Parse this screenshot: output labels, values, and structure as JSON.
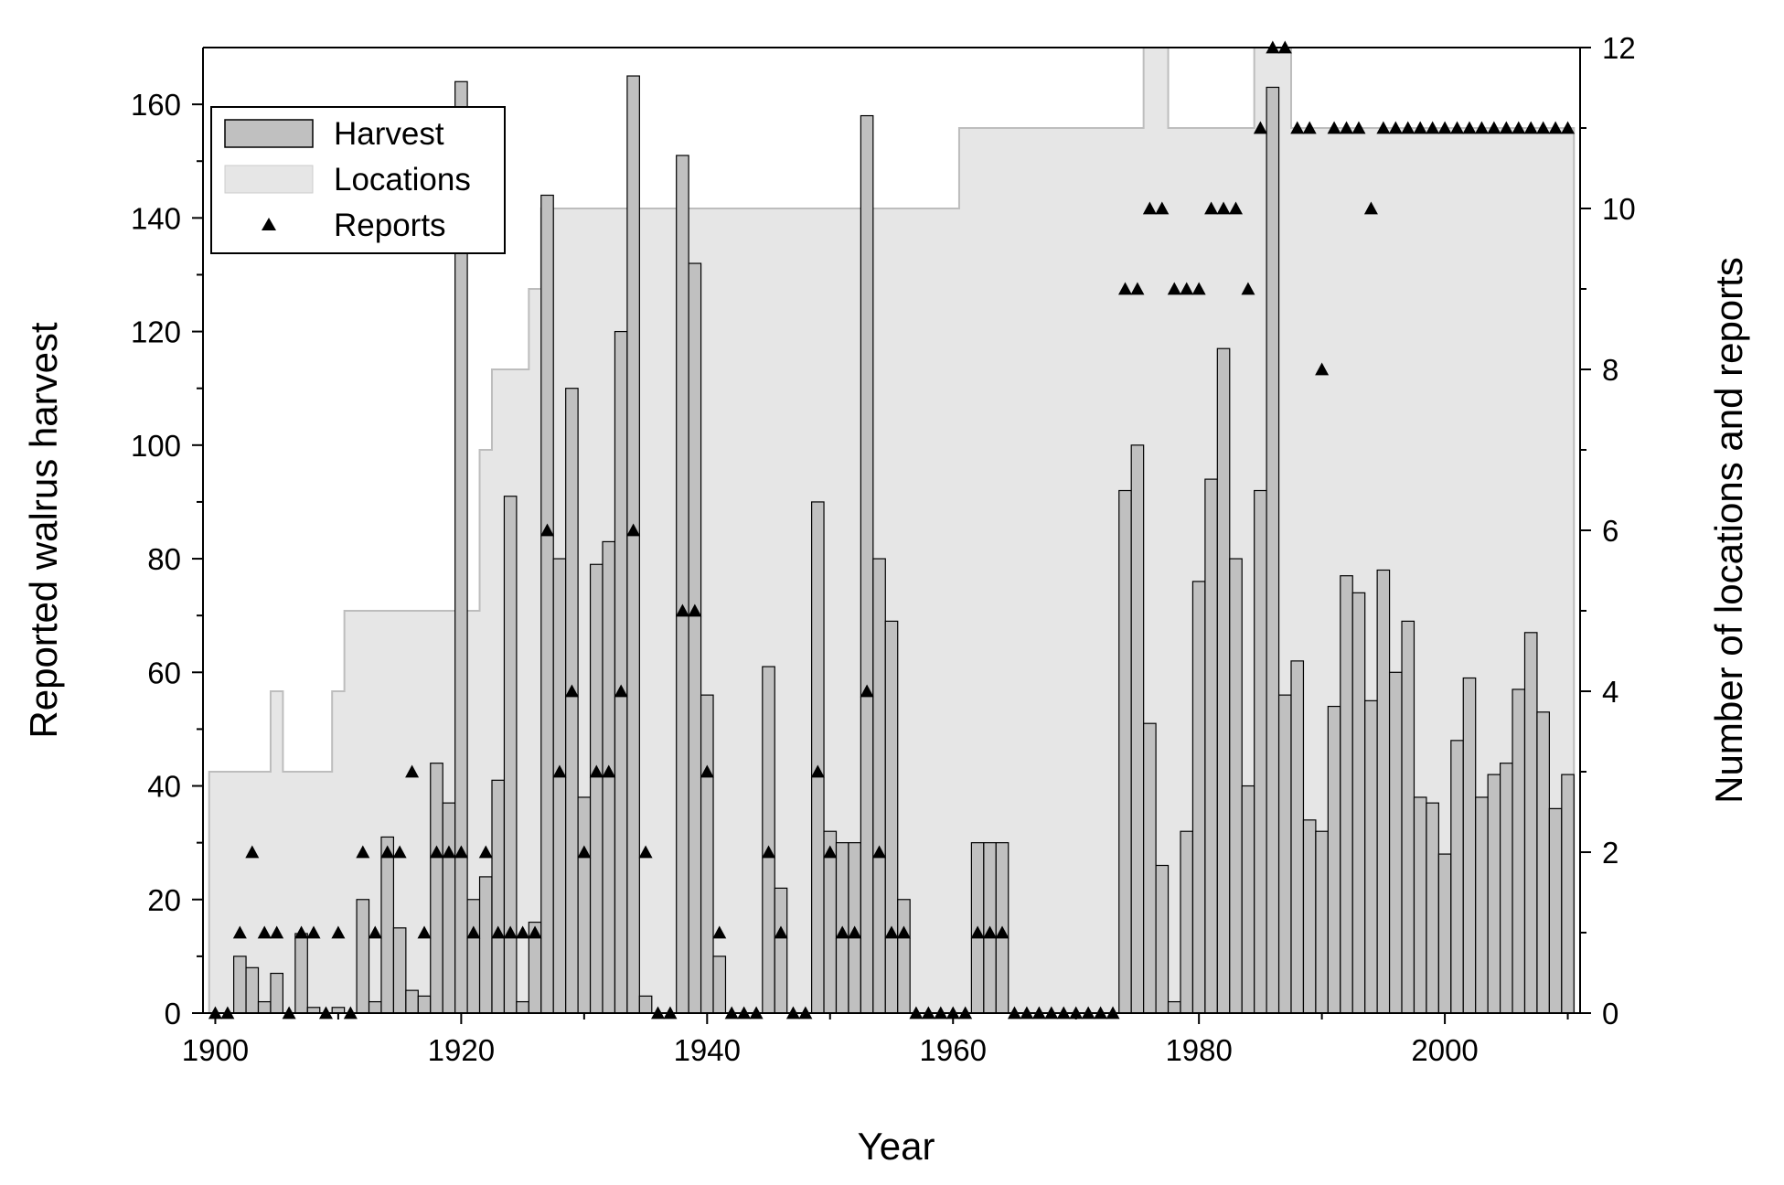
{
  "chart_data": {
    "type": "bar",
    "xlabel": "Year",
    "ylabel": "Reported walrus harvest",
    "y2label": "Number of locations and reports",
    "xlim": [
      1899,
      2011
    ],
    "ylim": [
      0,
      170
    ],
    "y2lim": [
      0,
      12
    ],
    "xticks": [
      1900,
      1920,
      1940,
      1960,
      1980,
      2000
    ],
    "yticks": [
      0,
      20,
      40,
      60,
      80,
      100,
      120,
      140,
      160
    ],
    "y2ticks": [
      0,
      2,
      4,
      6,
      8,
      10,
      12
    ],
    "legend": {
      "position": "top-left",
      "entries": [
        "Harvest",
        "Locations",
        "Reports"
      ]
    },
    "series": [
      {
        "name": "Harvest",
        "type": "bar",
        "axis": "left",
        "color": "#c0c0c0",
        "x": [
          1900,
          1901,
          1902,
          1903,
          1904,
          1905,
          1906,
          1907,
          1908,
          1909,
          1910,
          1911,
          1912,
          1913,
          1914,
          1915,
          1916,
          1917,
          1918,
          1919,
          1920,
          1921,
          1922,
          1923,
          1924,
          1925,
          1926,
          1927,
          1928,
          1929,
          1930,
          1931,
          1932,
          1933,
          1934,
          1935,
          1936,
          1937,
          1938,
          1939,
          1940,
          1941,
          1942,
          1943,
          1944,
          1945,
          1946,
          1947,
          1948,
          1949,
          1950,
          1951,
          1952,
          1953,
          1954,
          1955,
          1956,
          1957,
          1958,
          1959,
          1960,
          1961,
          1962,
          1963,
          1964,
          1965,
          1966,
          1967,
          1968,
          1969,
          1970,
          1971,
          1972,
          1973,
          1974,
          1975,
          1976,
          1977,
          1978,
          1979,
          1980,
          1981,
          1982,
          1983,
          1984,
          1985,
          1986,
          1987,
          1988,
          1989,
          1990,
          1991,
          1992,
          1993,
          1994,
          1995,
          1996,
          1997,
          1998,
          1999,
          2000,
          2001,
          2002,
          2003,
          2004,
          2005,
          2006,
          2007,
          2008,
          2009,
          2010
        ],
        "values": [
          0,
          0,
          10,
          8,
          2,
          7,
          0,
          14,
          1,
          0,
          1,
          0,
          20,
          2,
          31,
          15,
          4,
          3,
          44,
          37,
          164,
          20,
          24,
          41,
          91,
          2,
          16,
          144,
          80,
          110,
          38,
          79,
          83,
          120,
          165,
          3,
          0,
          0,
          151,
          132,
          56,
          10,
          0,
          0,
          0,
          61,
          22,
          0,
          0,
          90,
          32,
          30,
          30,
          158,
          80,
          69,
          20,
          0,
          0,
          0,
          0,
          0,
          30,
          30,
          30,
          0,
          0,
          0,
          0,
          0,
          0,
          0,
          0,
          0,
          92,
          100,
          51,
          26,
          2,
          32,
          76,
          94,
          117,
          80,
          40,
          92,
          163,
          56,
          62,
          34,
          32,
          54,
          77,
          74,
          55,
          78,
          60,
          69,
          38,
          37,
          28,
          48,
          59,
          38,
          42,
          44,
          57,
          67,
          53,
          36,
          42
        ]
      },
      {
        "name": "Locations",
        "type": "area-step",
        "axis": "right",
        "color": "#e6e6e6",
        "x": [
          1900,
          1901,
          1902,
          1903,
          1904,
          1905,
          1906,
          1907,
          1908,
          1909,
          1910,
          1911,
          1912,
          1913,
          1914,
          1915,
          1916,
          1917,
          1918,
          1919,
          1920,
          1921,
          1922,
          1923,
          1924,
          1925,
          1926,
          1927,
          1928,
          1929,
          1930,
          1931,
          1932,
          1933,
          1934,
          1935,
          1936,
          1937,
          1938,
          1939,
          1940,
          1941,
          1942,
          1943,
          1944,
          1945,
          1946,
          1947,
          1948,
          1949,
          1950,
          1951,
          1952,
          1953,
          1954,
          1955,
          1956,
          1957,
          1958,
          1959,
          1960,
          1961,
          1962,
          1963,
          1964,
          1965,
          1966,
          1967,
          1968,
          1969,
          1970,
          1971,
          1972,
          1973,
          1974,
          1975,
          1976,
          1977,
          1978,
          1979,
          1980,
          1981,
          1982,
          1983,
          1984,
          1985,
          1986,
          1987,
          1988,
          1989,
          1990,
          1991,
          1992,
          1993,
          1994,
          1995,
          1996,
          1997,
          1998,
          1999,
          2000,
          2001,
          2002,
          2003,
          2004,
          2005,
          2006,
          2007,
          2008,
          2009,
          2010
        ],
        "values": [
          3,
          3,
          3,
          3,
          3,
          4,
          3,
          3,
          3,
          3,
          4,
          5,
          5,
          5,
          5,
          5,
          5,
          5,
          5,
          5,
          5,
          5,
          7,
          8,
          8,
          8,
          9,
          10,
          10,
          10,
          10,
          10,
          10,
          10,
          10,
          10,
          10,
          10,
          10,
          10,
          10,
          10,
          10,
          10,
          10,
          10,
          10,
          10,
          10,
          10,
          10,
          10,
          10,
          10,
          10,
          10,
          10,
          10,
          10,
          10,
          10,
          11,
          11,
          11,
          11,
          11,
          11,
          11,
          11,
          11,
          11,
          11,
          11,
          11,
          11,
          11,
          12,
          12,
          11,
          11,
          11,
          11,
          11,
          11,
          11,
          12,
          12,
          12,
          11,
          11,
          11,
          11,
          11,
          11,
          11,
          11,
          11,
          11,
          11,
          11,
          11,
          11,
          11,
          11,
          11,
          11,
          11,
          11,
          11,
          11,
          11
        ]
      },
      {
        "name": "Reports",
        "type": "scatter",
        "axis": "right",
        "marker": "triangle",
        "color": "#000000",
        "x": [
          1900,
          1901,
          1902,
          1903,
          1904,
          1905,
          1906,
          1907,
          1908,
          1909,
          1910,
          1911,
          1912,
          1913,
          1914,
          1915,
          1916,
          1917,
          1918,
          1919,
          1920,
          1921,
          1922,
          1923,
          1924,
          1925,
          1926,
          1927,
          1928,
          1929,
          1930,
          1931,
          1932,
          1933,
          1934,
          1935,
          1936,
          1937,
          1938,
          1939,
          1940,
          1941,
          1942,
          1943,
          1944,
          1945,
          1946,
          1947,
          1948,
          1949,
          1950,
          1951,
          1952,
          1953,
          1954,
          1955,
          1956,
          1957,
          1958,
          1959,
          1960,
          1961,
          1962,
          1963,
          1964,
          1965,
          1966,
          1967,
          1968,
          1969,
          1970,
          1971,
          1972,
          1973,
          1974,
          1975,
          1976,
          1977,
          1978,
          1979,
          1980,
          1981,
          1982,
          1983,
          1984,
          1985,
          1986,
          1987,
          1988,
          1989,
          1990,
          1991,
          1992,
          1993,
          1994,
          1995,
          1996,
          1997,
          1998,
          1999,
          2000,
          2001,
          2002,
          2003,
          2004,
          2005,
          2006,
          2007,
          2008,
          2009,
          2010
        ],
        "values": [
          0,
          0,
          1,
          2,
          1,
          1,
          0,
          1,
          1,
          0,
          1,
          0,
          2,
          1,
          2,
          2,
          3,
          1,
          2,
          2,
          2,
          1,
          2,
          1,
          1,
          1,
          1,
          6,
          3,
          4,
          2,
          3,
          3,
          4,
          6,
          2,
          0,
          0,
          5,
          5,
          3,
          1,
          0,
          0,
          0,
          2,
          1,
          0,
          0,
          3,
          2,
          1,
          1,
          4,
          2,
          1,
          1,
          0,
          0,
          0,
          0,
          0,
          1,
          1,
          1,
          0,
          0,
          0,
          0,
          0,
          0,
          0,
          0,
          0,
          9,
          9,
          10,
          10,
          9,
          9,
          9,
          10,
          10,
          10,
          9,
          11,
          12,
          12,
          11,
          11,
          8,
          11,
          11,
          11,
          10,
          11,
          11,
          11,
          11,
          11,
          11,
          11,
          11,
          11,
          11,
          11,
          11,
          11,
          11,
          11,
          11
        ]
      }
    ]
  }
}
